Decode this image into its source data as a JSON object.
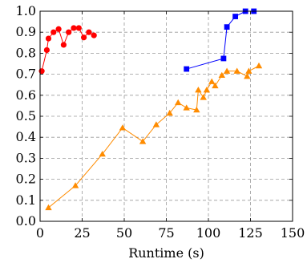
{
  "chart_data": {
    "type": "line",
    "title": "",
    "xlabel": "Runtime (s)",
    "ylabel": "",
    "xlim": [
      0,
      150
    ],
    "ylim": [
      0,
      1.0
    ],
    "xticks": [
      0,
      25,
      50,
      75,
      100,
      125,
      150
    ],
    "yticks": [
      0,
      0.1,
      0.2,
      0.3,
      0.4,
      0.5,
      0.6,
      0.7,
      0.8,
      0.9,
      1.0
    ],
    "xtick_labels": [
      "0",
      "25",
      "50",
      "75",
      "100",
      "125",
      "150"
    ],
    "ytick_labels": [
      "0.0",
      "0.1",
      "0.2",
      "0.3",
      "0.4",
      "0.5",
      "0.6",
      "0.7",
      "0.8",
      "0.9",
      "1.0"
    ],
    "grid": true,
    "series": [
      {
        "color": "#ff0000",
        "marker": "circle",
        "x": [
          1,
          4,
          5,
          8,
          11,
          14,
          17,
          20,
          23,
          26,
          29,
          32
        ],
        "y": [
          0.715,
          0.815,
          0.87,
          0.9,
          0.915,
          0.84,
          0.9,
          0.92,
          0.92,
          0.875,
          0.9,
          0.885
        ]
      },
      {
        "color": "#0000ff",
        "marker": "square",
        "x": [
          87,
          109,
          111,
          116,
          122,
          127
        ],
        "y": [
          0.725,
          0.775,
          0.925,
          0.975,
          1.0,
          1.0
        ]
      },
      {
        "color": "#ff8c00",
        "marker": "triangle",
        "x": [
          5,
          21,
          37,
          49,
          61,
          69,
          77,
          82,
          87,
          93,
          94,
          97,
          99,
          102,
          104,
          108,
          111,
          117,
          123,
          124,
          130
        ],
        "y": [
          0.065,
          0.17,
          0.32,
          0.445,
          0.38,
          0.46,
          0.515,
          0.565,
          0.54,
          0.53,
          0.625,
          0.59,
          0.625,
          0.665,
          0.645,
          0.695,
          0.715,
          0.715,
          0.69,
          0.715,
          0.74
        ]
      }
    ]
  }
}
